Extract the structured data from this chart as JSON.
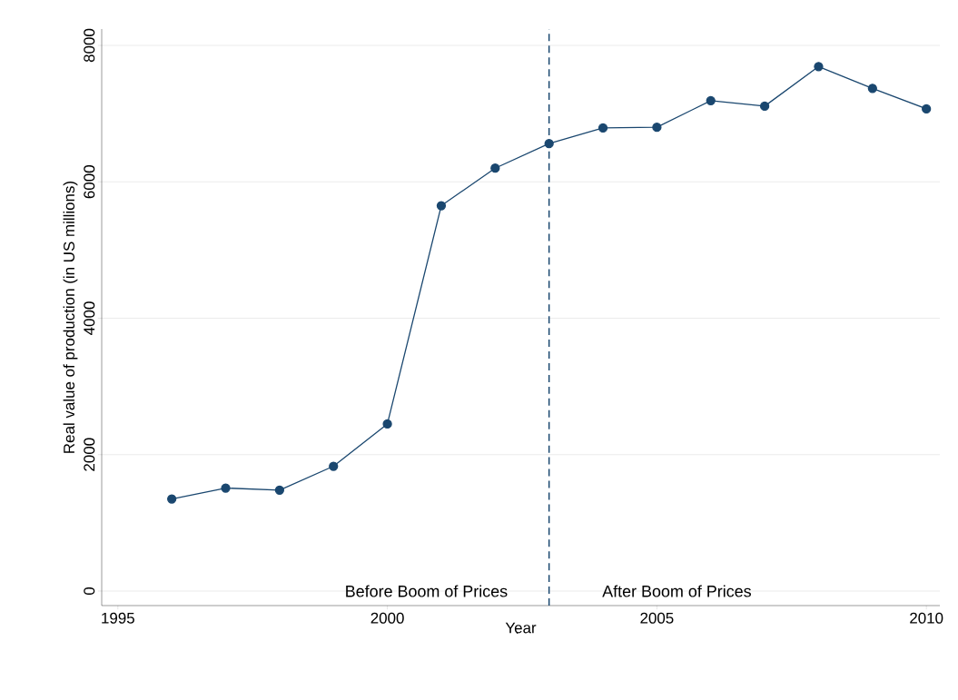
{
  "chart_data": {
    "type": "line",
    "xlabel": "Year",
    "ylabel": "Real value of production (in US millions)",
    "x": [
      1996,
      1997,
      1998,
      1999,
      2000,
      2001,
      2002,
      2003,
      2004,
      2005,
      2006,
      2007,
      2008,
      2009,
      2010
    ],
    "values": [
      1350,
      1510,
      1480,
      1830,
      2450,
      5650,
      6200,
      6560,
      6790,
      6800,
      7190,
      7110,
      7690,
      7370,
      7070
    ],
    "color": "#1a476f",
    "marker": "circle",
    "line_style": "solid",
    "grid": "y",
    "xlim": [
      1994.7,
      2010.25
    ],
    "ylim": [
      -213,
      8240
    ],
    "xticks": [
      1995,
      2000,
      2005,
      2010
    ],
    "yticks": [
      0,
      2000,
      4000,
      6000,
      8000
    ],
    "ref_lines": [
      {
        "axis": "x",
        "value": 2003,
        "color": "#1a476f",
        "line_style": "dashed"
      }
    ],
    "annotations": [
      "Before Boom of Prices",
      "After Boom of Prices"
    ]
  }
}
